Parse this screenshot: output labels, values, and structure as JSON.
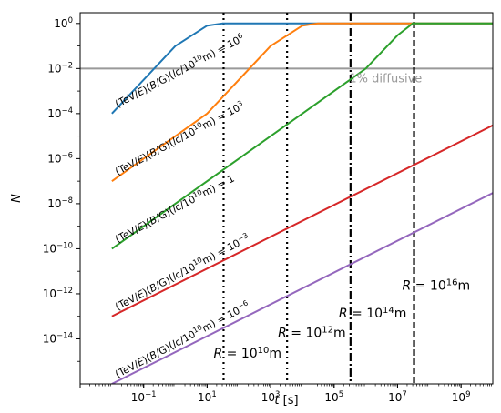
{
  "chart_data": {
    "type": "line",
    "xscale": "log",
    "yscale": "log",
    "xlim": [
      0.001,
      10000000000
    ],
    "ylim": [
      1e-16,
      3
    ],
    "xlabel": "t [s]",
    "ylabel": "N",
    "xticks": [
      0.1,
      10,
      1000,
      100000,
      10000000,
      1000000000
    ],
    "yticks": [
      1,
      0.01,
      0.0001,
      1e-06,
      1e-08,
      1e-10,
      1e-12,
      1e-14
    ],
    "grid": false,
    "series": [
      {
        "color": "#1f77b4",
        "label": "(TeV/E)(B/G)(l_c/10^10 m) = 10^6",
        "points": [
          [
            0.01,
            0.0001
          ],
          [
            1,
            0.1
          ],
          [
            10,
            0.8
          ],
          [
            30,
            1
          ],
          [
            10000000000,
            1
          ]
        ]
      },
      {
        "color": "#ff7f0e",
        "label": "(TeV/E)(B/G)(l_c/10^10 m) = 10^3",
        "points": [
          [
            0.01,
            1e-07
          ],
          [
            10,
            0.0001
          ],
          [
            1000,
            0.1
          ],
          [
            10000,
            0.8
          ],
          [
            30000,
            1
          ],
          [
            10000000000,
            1
          ]
        ]
      },
      {
        "color": "#2ca02c",
        "label": "(TeV/E)(B/G)(l_c/10^10 m) = 1",
        "points": [
          [
            0.01,
            1e-10
          ],
          [
            100,
            1e-06
          ],
          [
            1000000,
            0.01
          ],
          [
            10000000,
            0.3
          ],
          [
            30000000,
            1
          ],
          [
            10000000000,
            1
          ]
        ]
      },
      {
        "color": "#d62728",
        "label": "(TeV/E)(B/G)(l_c/10^10 m) = 10^-3",
        "points": [
          [
            0.01,
            1e-13
          ],
          [
            10000000000,
            3e-05
          ]
        ]
      },
      {
        "color": "#9467bd",
        "label": "(TeV/E)(B/G)(l_c/10^10 m) = 10^-6",
        "points": [
          [
            0.01,
            1e-16
          ],
          [
            10000000000,
            3e-08
          ]
        ]
      }
    ],
    "hlines": [
      {
        "y": 0.01,
        "color": "#999999",
        "label": "1% diffusive"
      }
    ],
    "vlines": [
      {
        "x": 33,
        "style": "dotted",
        "label": "R = 10^10 m"
      },
      {
        "x": 3300,
        "style": "dotted",
        "label": "R = 10^12 m"
      },
      {
        "x": 330000,
        "style": "dashdot",
        "label": "R = 10^14 m"
      },
      {
        "x": 33000000,
        "style": "dashed",
        "label": "R = 10^16 m"
      }
    ]
  }
}
